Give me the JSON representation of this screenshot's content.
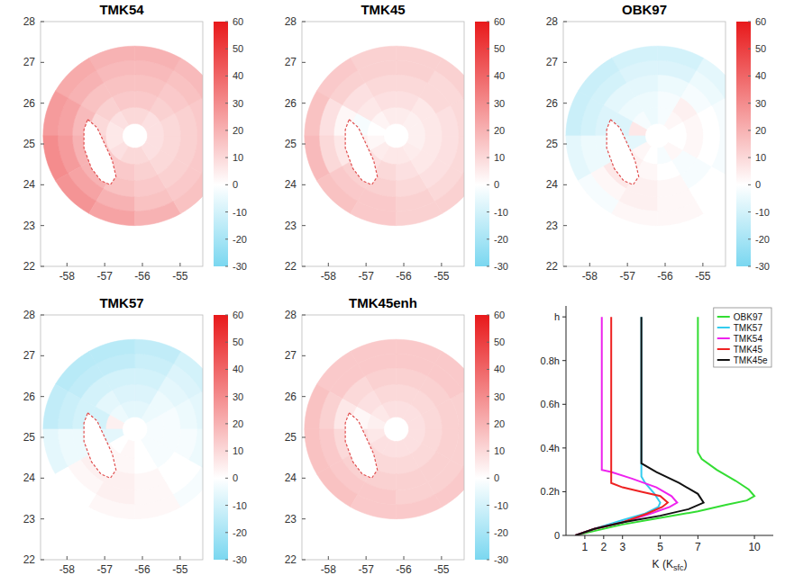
{
  "chart_data": [
    {
      "type": "heatmap",
      "title": "TMK54",
      "xlim": [
        -58.7,
        -54.4
      ],
      "ylim": [
        22,
        28
      ],
      "xticks": [
        -58,
        -57,
        -56,
        -55
      ],
      "yticks": [
        22,
        23,
        24,
        25,
        26,
        27,
        28
      ],
      "center": [
        -56.2,
        25.2
      ],
      "ring_edges": [
        0.3,
        0.7,
        1.1,
        1.5,
        1.85,
        2.2
      ],
      "sectors": 12,
      "cells": [
        [
          8,
          8,
          10,
          10,
          8,
          6,
          6,
          8,
          10,
          10,
          8,
          8
        ],
        [
          10,
          12,
          14,
          14,
          12,
          10,
          12,
          14,
          14,
          12,
          10,
          10
        ],
        [
          12,
          14,
          16,
          16,
          16,
          18,
          20,
          20,
          16,
          14,
          12,
          12
        ],
        [
          14,
          16,
          18,
          18,
          20,
          24,
          26,
          24,
          20,
          16,
          14,
          14
        ],
        [
          16,
          18,
          20,
          20,
          22,
          26,
          30,
          28,
          24,
          20,
          16,
          16
        ]
      ],
      "island": [
        [
          -57.45,
          25.6
        ],
        [
          -57.2,
          25.4
        ],
        [
          -57.0,
          25.0
        ],
        [
          -56.8,
          24.6
        ],
        [
          -56.7,
          24.2
        ],
        [
          -56.85,
          24.0
        ],
        [
          -57.1,
          24.1
        ],
        [
          -57.35,
          24.4
        ],
        [
          -57.55,
          24.9
        ],
        [
          -57.55,
          25.35
        ]
      ],
      "colorbar": {
        "range": [
          -30,
          60
        ],
        "ticks": [
          -30,
          -20,
          -10,
          0,
          10,
          20,
          30,
          40,
          50,
          60
        ],
        "stops": [
          -30,
          0,
          60
        ],
        "colors": [
          "#7ad7f0",
          "#ffffff",
          "#e8191b"
        ]
      }
    },
    {
      "type": "heatmap",
      "title": "TMK45",
      "xlim": [
        -58.7,
        -54.4
      ],
      "ylim": [
        22,
        28
      ],
      "xticks": [
        -58,
        -57,
        -56,
        -55
      ],
      "yticks": [
        22,
        23,
        24,
        25,
        26,
        27,
        28
      ],
      "center": [
        -56.2,
        25.2
      ],
      "ring_edges": [
        0.3,
        0.7,
        1.1,
        1.5,
        1.85,
        2.2
      ],
      "sectors": 12,
      "cells": [
        [
          4,
          4,
          5,
          5,
          3,
          0,
          2,
          5,
          6,
          6,
          5,
          4
        ],
        [
          6,
          6,
          8,
          8,
          6,
          -2,
          4,
          8,
          10,
          8,
          6,
          6
        ],
        [
          8,
          10,
          10,
          10,
          8,
          2,
          6,
          12,
          12,
          10,
          8,
          8
        ],
        [
          10,
          10,
          12,
          12,
          12,
          8,
          10,
          14,
          14,
          12,
          10,
          10
        ],
        [
          12,
          12,
          12,
          12,
          14,
          16,
          18,
          16,
          14,
          12,
          12,
          12
        ]
      ],
      "island": [
        [
          -57.45,
          25.6
        ],
        [
          -57.2,
          25.4
        ],
        [
          -57.0,
          25.0
        ],
        [
          -56.8,
          24.6
        ],
        [
          -56.7,
          24.2
        ],
        [
          -56.85,
          24.0
        ],
        [
          -57.1,
          24.1
        ],
        [
          -57.35,
          24.4
        ],
        [
          -57.55,
          24.9
        ],
        [
          -57.55,
          25.35
        ]
      ],
      "colorbar": {
        "range": [
          -30,
          60
        ],
        "ticks": [
          -30,
          -20,
          -10,
          0,
          10,
          20,
          30,
          40,
          50,
          60
        ],
        "stops": [
          -30,
          0,
          60
        ],
        "colors": [
          "#7ad7f0",
          "#ffffff",
          "#e8191b"
        ]
      }
    },
    {
      "type": "heatmap",
      "title": "OBK97",
      "xlim": [
        -58.7,
        -54.4
      ],
      "ylim": [
        22,
        28
      ],
      "xticks": [
        -58,
        -57,
        -56,
        -55
      ],
      "yticks": [
        22,
        23,
        24,
        25,
        26,
        27,
        28
      ],
      "center": [
        -56.2,
        25.2
      ],
      "ring_edges": [
        0.3,
        0.7,
        1.1,
        1.5,
        1.85,
        2.2
      ],
      "sectors": 12,
      "cells": [
        [
          0,
          2,
          -2,
          -4,
          -2,
          6,
          -6,
          2,
          0,
          -2,
          2,
          0
        ],
        [
          2,
          4,
          -2,
          -4,
          -4,
          -8,
          -6,
          4,
          2,
          0,
          -2,
          2
        ],
        [
          0,
          -2,
          -4,
          -6,
          -6,
          -8,
          -4,
          6,
          4,
          2,
          -2,
          0
        ],
        [
          -2,
          -4,
          -8,
          -8,
          -10,
          -10,
          -4,
          2,
          4,
          2,
          0,
          -2
        ],
        [
          -4,
          -6,
          -10,
          -10,
          -12,
          -12,
          -6,
          -2,
          2,
          2,
          0,
          -2
        ]
      ],
      "island": [
        [
          -57.45,
          25.6
        ],
        [
          -57.2,
          25.4
        ],
        [
          -57.0,
          25.0
        ],
        [
          -56.8,
          24.6
        ],
        [
          -56.7,
          24.2
        ],
        [
          -56.85,
          24.0
        ],
        [
          -57.1,
          24.1
        ],
        [
          -57.35,
          24.4
        ],
        [
          -57.55,
          24.9
        ],
        [
          -57.55,
          25.35
        ]
      ],
      "colorbar": {
        "range": [
          -30,
          60
        ],
        "ticks": [
          -30,
          -20,
          -10,
          0,
          10,
          20,
          30,
          40,
          50,
          60
        ],
        "stops": [
          -30,
          0,
          60
        ],
        "colors": [
          "#7ad7f0",
          "#ffffff",
          "#e8191b"
        ]
      }
    },
    {
      "type": "heatmap",
      "title": "TMK57",
      "xlim": [
        -58.7,
        -54.4
      ],
      "ylim": [
        22,
        28
      ],
      "xticks": [
        -58,
        -57,
        -56,
        -55
      ],
      "yticks": [
        22,
        23,
        24,
        25,
        26,
        27,
        28
      ],
      "center": [
        -56.2,
        25.2
      ],
      "ring_edges": [
        0.3,
        0.7,
        1.1,
        1.5,
        1.85,
        2.2
      ],
      "sectors": 12,
      "cells": [
        [
          -2,
          -4,
          -6,
          -6,
          -4,
          4,
          -6,
          0,
          2,
          0,
          -2,
          -2
        ],
        [
          -2,
          -4,
          -8,
          -8,
          -6,
          -10,
          -6,
          2,
          2,
          0,
          -2,
          -2
        ],
        [
          -4,
          -6,
          -10,
          -10,
          -10,
          -10,
          -4,
          4,
          4,
          2,
          0,
          -2
        ],
        [
          -6,
          -8,
          -12,
          -14,
          -14,
          -12,
          -4,
          2,
          4,
          2,
          0,
          -4
        ],
        [
          -8,
          -10,
          -14,
          -16,
          -16,
          -14,
          -6,
          0,
          2,
          2,
          -2,
          -6
        ]
      ],
      "island": [
        [
          -57.45,
          25.6
        ],
        [
          -57.2,
          25.4
        ],
        [
          -57.0,
          25.0
        ],
        [
          -56.8,
          24.6
        ],
        [
          -56.7,
          24.2
        ],
        [
          -56.85,
          24.0
        ],
        [
          -57.1,
          24.1
        ],
        [
          -57.35,
          24.4
        ],
        [
          -57.55,
          24.9
        ],
        [
          -57.55,
          25.35
        ]
      ],
      "colorbar": {
        "range": [
          -30,
          60
        ],
        "ticks": [
          -30,
          -20,
          -10,
          0,
          10,
          20,
          30,
          40,
          50,
          60
        ],
        "stops": [
          -30,
          0,
          60
        ],
        "colors": [
          "#7ad7f0",
          "#ffffff",
          "#e8191b"
        ]
      }
    },
    {
      "type": "heatmap",
      "title": "TMK45enh",
      "xlim": [
        -58.7,
        -54.4
      ],
      "ylim": [
        22,
        28
      ],
      "xticks": [
        -58,
        -57,
        -56,
        -55
      ],
      "yticks": [
        22,
        23,
        24,
        25,
        26,
        27,
        28
      ],
      "center": [
        -56.2,
        25.2
      ],
      "ring_edges": [
        0.3,
        0.7,
        1.1,
        1.5,
        1.85,
        2.2
      ],
      "sectors": 12,
      "cells": [
        [
          8,
          8,
          8,
          8,
          6,
          4,
          6,
          8,
          8,
          8,
          8,
          8
        ],
        [
          10,
          10,
          10,
          10,
          8,
          2,
          8,
          10,
          10,
          10,
          10,
          10
        ],
        [
          12,
          12,
          12,
          12,
          10,
          6,
          10,
          12,
          12,
          12,
          12,
          12
        ],
        [
          12,
          14,
          14,
          14,
          14,
          12,
          14,
          14,
          14,
          12,
          12,
          12
        ],
        [
          14,
          14,
          14,
          14,
          14,
          16,
          16,
          16,
          14,
          14,
          14,
          14
        ]
      ],
      "island": [
        [
          -57.45,
          25.6
        ],
        [
          -57.2,
          25.4
        ],
        [
          -57.0,
          25.0
        ],
        [
          -56.8,
          24.6
        ],
        [
          -56.7,
          24.2
        ],
        [
          -56.85,
          24.0
        ],
        [
          -57.1,
          24.1
        ],
        [
          -57.35,
          24.4
        ],
        [
          -57.55,
          24.9
        ],
        [
          -57.55,
          25.35
        ]
      ],
      "colorbar": {
        "range": [
          -30,
          60
        ],
        "ticks": [
          -30,
          -20,
          -10,
          0,
          10,
          20,
          30,
          40,
          50,
          60
        ],
        "stops": [
          -30,
          0,
          60
        ],
        "colors": [
          "#7ad7f0",
          "#ffffff",
          "#e8191b"
        ]
      }
    },
    {
      "type": "line",
      "x_label": {
        "main": "K (K",
        "sub": "sfc",
        "end": ")"
      },
      "xlim": [
        0,
        11
      ],
      "ylim": [
        0,
        1.05
      ],
      "xticks": [
        1,
        2,
        3,
        5,
        7,
        10
      ],
      "yticks": [
        0,
        {
          "value": 0.2,
          "label": "0.2h"
        },
        {
          "value": 0.4,
          "label": "0.4h"
        },
        {
          "value": 0.6,
          "label": "0.6h"
        },
        {
          "value": 0.8,
          "label": "0.8h"
        },
        {
          "value": 1,
          "label": "h"
        }
      ],
      "legend": "top-right",
      "series": [
        {
          "name": "OBK97",
          "color": "#33dd33",
          "x": [
            0.5,
            1.5,
            3,
            5,
            7,
            8.5,
            9.6,
            10,
            9.7,
            9,
            8,
            7.2,
            7,
            7
          ],
          "values": [
            0,
            0.02,
            0.05,
            0.08,
            0.11,
            0.14,
            0.16,
            0.18,
            0.21,
            0.25,
            0.3,
            0.35,
            0.38,
            1.0
          ]
        },
        {
          "name": "TMK57",
          "color": "#33ccee",
          "x": [
            0.5,
            1.5,
            3,
            4.2,
            4.9,
            5,
            4.7,
            4.2,
            4,
            4
          ],
          "values": [
            0,
            0.03,
            0.07,
            0.1,
            0.13,
            0.15,
            0.19,
            0.24,
            0.27,
            1.0
          ]
        },
        {
          "name": "TMK54",
          "color": "#ee22ee",
          "x": [
            0.5,
            1.5,
            3,
            4.5,
            5.5,
            5.9,
            5.6,
            4.8,
            3.5,
            2.4,
            1.9,
            1.9
          ],
          "values": [
            0,
            0.03,
            0.06,
            0.1,
            0.13,
            0.15,
            0.18,
            0.22,
            0.26,
            0.29,
            0.3,
            1.0
          ]
        },
        {
          "name": "TMK45",
          "color": "#ee2222",
          "x": [
            0.5,
            1.5,
            3,
            4.3,
            5.1,
            5.4,
            5,
            4,
            3,
            2.4,
            2.4
          ],
          "values": [
            0,
            0.03,
            0.06,
            0.1,
            0.13,
            0.15,
            0.18,
            0.2,
            0.22,
            0.24,
            1.0
          ]
        },
        {
          "name": "TMK45e",
          "color": "#111111",
          "x": [
            0.5,
            1.5,
            3,
            5,
            6.5,
            7.3,
            7,
            6,
            4.8,
            4,
            4
          ],
          "values": [
            0,
            0.03,
            0.06,
            0.09,
            0.12,
            0.15,
            0.19,
            0.24,
            0.29,
            0.33,
            1.0
          ]
        }
      ]
    }
  ]
}
